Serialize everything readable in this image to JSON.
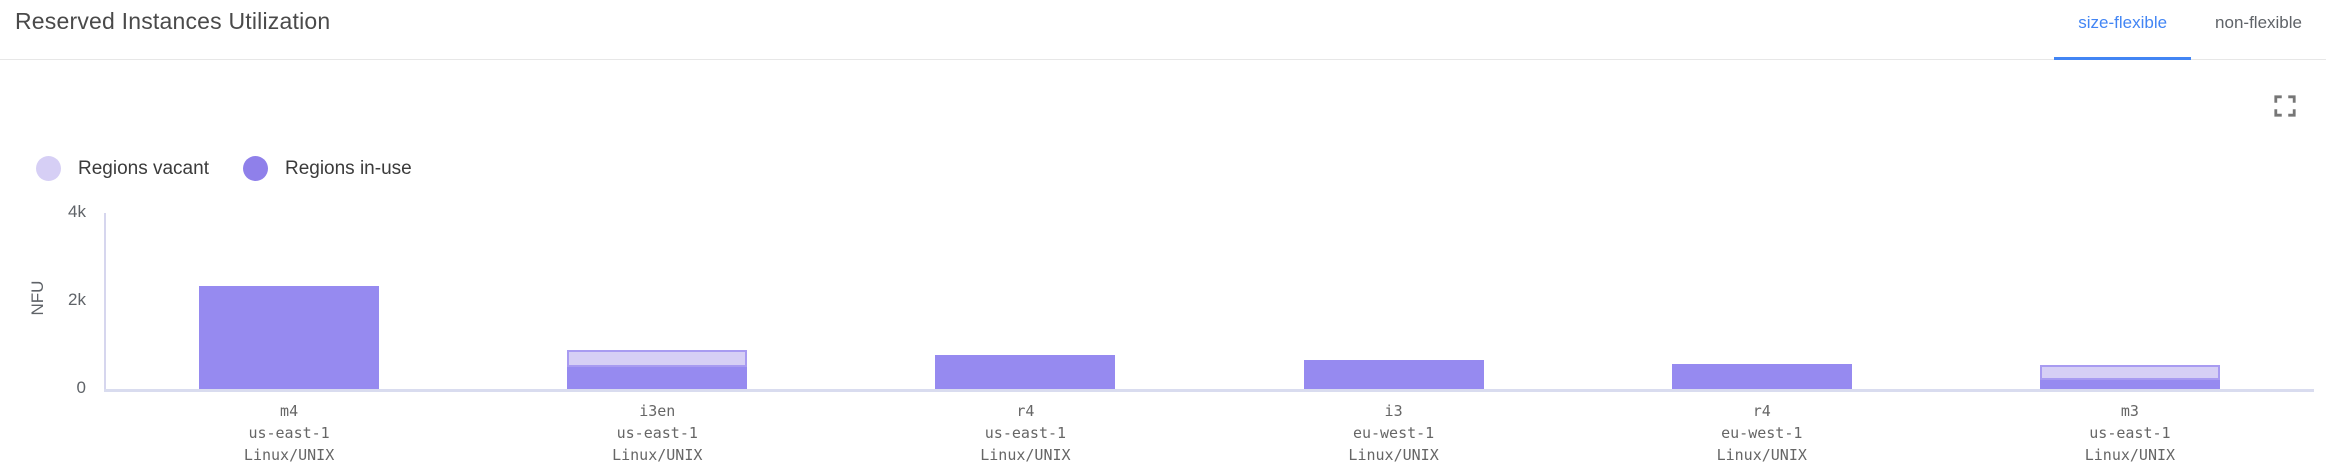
{
  "header": {
    "title": "Reserved Instances Utilization",
    "tabs": [
      {
        "label": "size-flexible",
        "active": true
      },
      {
        "label": "non-flexible",
        "active": false
      }
    ]
  },
  "colors": {
    "tab_active": "#4285f4",
    "in_use": "#968af0",
    "vacant_fill": "#d6cff5",
    "vacant_border": "#a89bf1",
    "axis_line": "#d8d8ee"
  },
  "chart_data": {
    "type": "bar",
    "stacked": true,
    "title": "Reserved Instances Utilization",
    "ylabel": "NFU",
    "ylim": [
      0,
      4000
    ],
    "grid": false,
    "legend_position": "top-left",
    "yticks": [
      {
        "label": "0",
        "value": 0
      },
      {
        "label": "2k",
        "value": 2000
      },
      {
        "label": "4k",
        "value": 4000
      }
    ],
    "categories": [
      [
        "m4",
        "us-east-1",
        "Linux/UNIX"
      ],
      [
        "i3en",
        "us-east-1",
        "Linux/UNIX"
      ],
      [
        "r4",
        "us-east-1",
        "Linux/UNIX"
      ],
      [
        "i3",
        "eu-west-1",
        "Linux/UNIX"
      ],
      [
        "r4",
        "eu-west-1",
        "Linux/UNIX"
      ],
      [
        "m3",
        "us-east-1",
        "Linux/UNIX"
      ]
    ],
    "series": [
      {
        "name": "Regions vacant",
        "color": "#d6cff5",
        "values": [
          0,
          400,
          0,
          0,
          0,
          340
        ]
      },
      {
        "name": "Regions in-use",
        "color": "#968af0",
        "values": [
          2350,
          490,
          775,
          660,
          570,
          205
        ]
      }
    ]
  }
}
